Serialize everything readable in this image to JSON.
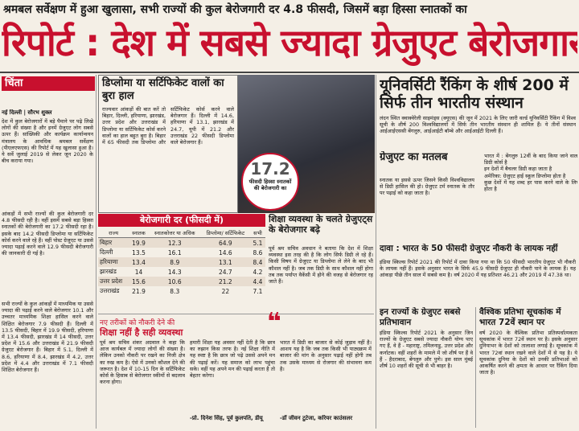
{
  "header": {
    "kicker": "श्रमबल सर्वेक्षण में हुआ खुलासा, सभी राज्यों की कुल बेरोजगारी दर 4.8 फीसदी, जिसमें बड़ा हिस्सा स्नातकों का",
    "headline": "रिपोर्ट : देश में सबसे ज्यादा ग्रेजुएट बेरोजगार"
  },
  "left": {
    "label": "चिंता",
    "dateline": "नई दिल्ली | सौरभ शुक्ल",
    "paragraphs": [
      "देश में कुल बेरोजगारों में बड़े पैमाने पर पढ़े लिखे लोगों की संख्या है और इनमें ग्रेजुएट लोग सबसे ऊपर हैं। सांख्यिकी और कार्यक्रम कार्यान्वयन मंत्रालय के आवधिक श्रमबल सर्वेक्षण (पीएलएफएस) की रिपोर्ट में यह खुलासा हुआ है। ये सर्वे जुलाई 2019 से लेकर जून 2020 के बीच कराया गया।",
      "आंकड़ों में सभी राज्यों की कुल बेरोजगारी दर 4.8 फीसदी रही है। वहीं इसमें सबसे बड़ा हिस्सा स्नातकों की बेरोजगारी का 17.2 फीसदी रहा है। इसके बाद 14.2 फीसदी डिप्लोमा या सर्टिफिकेट कोर्स करने वाले रहे हैं। वहीं पोस्ट ग्रेजुएट या उससे ज्यादा पढ़ाई करने वाले 12.9 फीसदी बेरोजगारी की जानकारी दी गई है।",
      "सभी राज्यों के कुल आंकड़ों में माध्यमिक या उससे ज्यादा की पढ़ाई करने वाले बेरोजगार 10.1 और उच्चतर माध्यमिक शिक्षा हासिल करने वाले शिक्षित बेरोजगार 7.9 फीसदी हैं। दिल्ली में 13.5 फीसदी, बिहार में 19.9 फीसदी, हरियाणा में 13.4 फीसदी, झारखंड में 14 फीसदी, उत्तर प्रदेश में 15.6 और उत्तराखंड में 21.9 फीसदी ग्रेजुएट बेरोजगार हैं। बिहार में 5.1, दिल्ली में 8.6, हरियाणा में 8.4, झारखंड में 4.2, उत्तर प्रदेश में 4.4 और उत्तराखंड में 7.1 फीसदी शिक्षित बेरोजगार हैं।"
    ]
  },
  "diploma": {
    "title": "डिप्लोमा या सर्टिफिकेट वालों का बुरा हाल",
    "paragraphs": [
      "राज्यवार आंकड़ों की बात करें तो बिहार, दिल्ली, हरियाणा, झारखंड, उत्तर प्रदेश और उत्तराखंड में डिप्लोमा या सर्टिफिकेट कोर्स करने वालों का हाल बहुत बुरा है। बिहार में 65 फीसदी तक डिप्लोमा और सर्टिफिकेट कोर्स करने वाले बेरोजगार हैं। दिल्ली में 14.6, हरियाणा में 13.1, झारखंड में 24.7, यूपी में 21.2 और उत्तराखंड 22 फीसदी डिप्लोमा वाले बेरोजगार हैं।"
    ]
  },
  "stat": {
    "value": "17.2",
    "caption": "फीसदी हिस्सा स्नातकों की बेरोजगारी का"
  },
  "table": {
    "title": "बेरोजगारी दर (फीसदी में)",
    "headers": [
      "राज्य",
      "स्नातक",
      "स्नातकोत्तर या अधिक",
      "डिप्लोमा/ सर्टिफिकेट",
      "सभी"
    ],
    "rows": [
      [
        "बिहार",
        "19.9",
        "12.3",
        "64.9",
        "5.1"
      ],
      [
        "दिल्ली",
        "13.5",
        "16.1",
        "14.6",
        "8.6"
      ],
      [
        "हरियाणा",
        "13.4",
        "8.9",
        "13.1",
        "8.4"
      ],
      [
        "झारखंड",
        "14",
        "14.3",
        "24.7",
        "4.2"
      ],
      [
        "उत्तर प्रदेश",
        "15.6",
        "10.6",
        "21.2",
        "4.4"
      ],
      [
        "उत्तराखंड",
        "21.9",
        "8.3",
        "22",
        "7.1"
      ]
    ]
  },
  "education": {
    "title": "शिक्षा व्यवस्था के चलते ग्रेजुएट्स के बेरोजगार बढ़े",
    "text": "पूर्व श्रम सचिव अवधान ने बताया कि देश में शिक्षा व्यवस्था इस तरह की है कि लोग सिर्फ डिग्री ले रहे हैं। किसी विषय में ग्रेजुएट या डिप्लोमा ले लेने के बाद भी कौशल नहीं है। जब तक डिग्री के साथ कौशल नहीं होगा तब तक पर्याप्त वैकेंसी में होने की वजह से बेरोजगार रह जाते हैं।"
  },
  "ranking": {
    "title": "यूनिवर्सिटी रैंकिंग के शीर्ष 200 में सिर्फ तीन भारतीय संस्थान",
    "text": "लंदन स्थित क्वाक्वेरेली साइमंड्स (क्यूएस) की जून में 2021 के लिए जारी वर्ल्ड यूनिवर्सिटी रैंकिंग में विश्व सूची के शीर्ष 200 विश्वविद्यालयों में सिर्फ तीन भारतीय संस्थान ही शामिल हैं। ये तीनों संस्थान आईआईएससी बेंगलुरु, आईआईटी बॉम्बे और आईआईटी दिल्ली हैं।"
  },
  "graduate_box": {
    "title": "ग्रेजुएट का मतलब",
    "text": "स्नातक या इससे ऊपर जिसने किसी विश्वविद्यालय से डिग्री हासिल की हो। ग्रेजुएट टर्म स्नातक के तौर पर पढ़ाई को कहा जाता है।",
    "bullets": [
      "भारत में : बेंगलुरु 12वीं के बाद किया जाने वाला डिग्री कोर्स है",
      "इन देशों में बैचलर डिग्री कहा जाता है",
      "अमेरिका: ग्रेजुएट हाई स्कूल डिप्लोमा होता है",
      "कुछ देशों में यह शब्द हर पास करने वाले के लिए होता है"
    ]
  },
  "claim": {
    "title": "दावा : भारत के 50 फीसदी ग्रेजुएट नौकरी के लायक नहीं",
    "text": "इंडिया स्किल्स रिपोर्ट 2021 की रिपोर्ट में दावा किया गया था कि 50 फीसदी भारतीय ग्रेजुएट भी नौकरी के लायक नहीं हैं। इसके अनुसार भारत के सिर्फ 45.9 फीसदी ग्रेजुएट ही नौकरी पाने के लायक हैं। यह आंकड़ा पीछे तीन साल में सबसे कम है। वर्ष 2020 में यह प्रतिशत 46.21 और 2019 में 47.38 था।"
  },
  "survey": {
    "title": "इन राज्यों के ग्रेजुएट सबसे प्रतिभावान",
    "text": "इंडिया स्किल्स रिपोर्ट 2021 के अनुसार जिन राज्यों के ग्रेजुएट सबसे ज्यादा नौकरी योग्य पाए गए हैं, वे हैं - महाराष्ट्र, तमिलनाडु, उत्तर प्रदेश और कर्नाटक। वहीं शहरों के मामले में जो शीर्ष पर हैं वे हैं - हैदराबाद, बेंगलुरु और पुणे। इस साल मुंबई शीर्ष 10 शहरों की सूची से भी बाहर है।"
  },
  "global": {
    "title": "वैश्विक प्रतिभा सूचकांक में भारत 72वें स्थान पर",
    "text": "वर्ष 2020 के वैश्विक प्रतिभा प्रतिस्पर्धात्मकता सूचकांक में भारत 72वें स्थान पर है। इसके अनुसार दुनियाभर के देशों को तालाशा लगाई है। सूचकांक में भारत 72वां स्थान रखने वाले देशों में से यह है। ये सूचकांक दुनिया के देशों को उनकी प्रतिभाओं को आकर्षित करने की क्षमता के आधार पर रैंकिंग दिया जाता है।"
  },
  "bottom": {
    "kicker": "नए तरीकों को नौकरी देने की",
    "title": "शिक्षा नहीं है सही व्यवस्था",
    "paragraphs": [
      "पूर्व श्रम सचिव शंकर अग्रवाल ने कहा कि आज कार्यबल में ज्यादा लोगों की संख्या है। लेकिन उनको नौकरी पर रखने का निजी क्षेत्र का रुख कम है। ऐसे में उनको कौशल देने की जरूरत है। देश में 10-15 दिन के सर्टिफिकेट कोर्स के हिसाब से बेरोजगार स्कीमों से बदलाव करना होगा।",
      "हमारी शिक्षा यह अवसर नहीं देती है कि छात्र का रुझान किस तरफ है। नई शिक्षा नीति में यह स्पष्ट है कि छात्र जो पढ़े उससे अपने मन की पढ़ाई करें। यह समाज को लाभ पहुंचा सके। वहीं यह अपने मन की पढ़ाई करता है तो बेहतर करेगा।",
      "भारत में डिग्री का बाजार से कोई जुड़ाव नहीं है। आशय यह है कि जब तक किसी भी पाठ्यक्रम में बाजार की मांग के अनुसार पढ़ाई नहीं होगी तब तक उसके माध्यम से रोजगार की संभावना कम है।"
    ],
    "quotes": [
      "-प्रो. दिनेश सिंह, पूर्व कुलपति, डीयू",
      "-डॉ जीवन टुटेजा, करियर काउंसलर"
    ]
  }
}
